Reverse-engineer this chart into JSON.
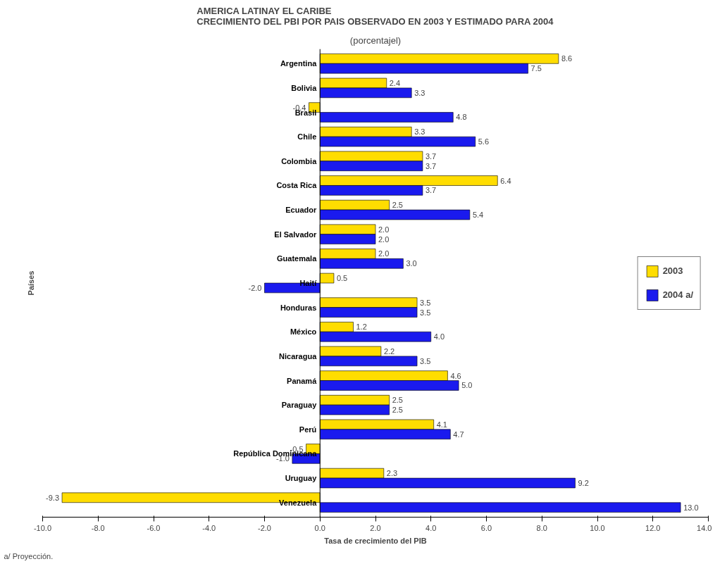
{
  "chart_data": {
    "type": "bar",
    "orientation": "horizontal",
    "title": "AMERICA LATINAY EL CARIBE\nCRECIMIENTO DEL PBI POR PAIS OBSERVADO EN 2003 Y ESTIMADO PARA 2004",
    "subtitle": "(porcentajel)",
    "xlabel": "Tasa de crecimiento del PIB",
    "ylabel": "Países",
    "categories": [
      "Argentina",
      "Bolivia",
      "Brasil",
      "Chile",
      "Colombia",
      "Costa Rica",
      "Ecuador",
      "El Salvador",
      "Guatemala",
      "Haití",
      "Honduras",
      "México",
      "Nicaragua",
      "Panamá",
      "Paraguay",
      "Perú",
      "República Dominicana",
      "Uruguay",
      "Venezuela"
    ],
    "series": [
      {
        "name": "2003",
        "color": "#ffdd00",
        "values": [
          8.6,
          2.4,
          -0.4,
          3.3,
          3.7,
          6.4,
          2.5,
          2.0,
          2.0,
          0.5,
          3.5,
          1.2,
          2.2,
          4.6,
          2.5,
          4.1,
          -0.5,
          2.3,
          -9.3
        ],
        "value_labels": [
          "8.6",
          "2.4",
          "-0.4",
          "3.3",
          "3.7",
          "6.4",
          "2.5",
          "2.0",
          "2.0",
          "0.5",
          "3.5",
          "1.2",
          "2.2",
          "4.6",
          "2.5",
          "4.1",
          "-0.5",
          "2.3",
          "-9.3"
        ]
      },
      {
        "name": "2004 a/",
        "color": "#1a1aee",
        "values": [
          7.5,
          3.3,
          4.8,
          5.6,
          3.7,
          3.7,
          5.4,
          2.0,
          3.0,
          -2.0,
          3.5,
          4.0,
          3.5,
          5.0,
          2.5,
          4.7,
          -1.0,
          9.2,
          13.0
        ],
        "value_labels": [
          "7.5",
          "3.3",
          "4.8",
          "5.6",
          "3.7",
          "3.7",
          "5.4",
          "2.0",
          "3.0",
          "-2.0",
          "3.5",
          "4.0",
          "3.5",
          "5.0",
          "2.5",
          "4.7",
          "-1.0",
          "9.2",
          "13.0"
        ]
      }
    ],
    "xlim": [
      -10,
      14
    ],
    "xticks": [
      {
        "value": -10,
        "label": "-10.0"
      },
      {
        "value": -8,
        "label": "-8.0"
      },
      {
        "value": -6,
        "label": "-6.0"
      },
      {
        "value": -4,
        "label": "-4.0"
      },
      {
        "value": -2,
        "label": "-2.0"
      },
      {
        "value": 0,
        "label": "0.0"
      },
      {
        "value": 2,
        "label": "2.0"
      },
      {
        "value": 4,
        "label": "4.0"
      },
      {
        "value": 6,
        "label": "6.0"
      },
      {
        "value": 8,
        "label": "8.0"
      },
      {
        "value": 10,
        "label": "10.0"
      },
      {
        "value": 12,
        "label": "12.0"
      },
      {
        "value": 14,
        "label": "14.0"
      }
    ],
    "legend": "right",
    "grid": false,
    "annotations": [
      "a/ Proyección."
    ]
  }
}
